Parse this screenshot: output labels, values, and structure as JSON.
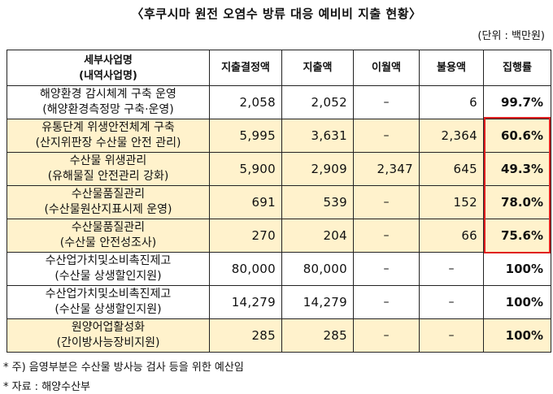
{
  "title": "〈후쿠시마 원전 오염수 방류 대응 예비비 지출 현황〉",
  "unit": "(단위 : 백만원)",
  "table": {
    "headers": {
      "name_line1": "세부사업명",
      "name_line2": "(내역사업명)",
      "decided": "지출결정액",
      "spent": "지출액",
      "carryover": "이월액",
      "unused": "불용액",
      "rate": "집행률"
    },
    "rows": [
      {
        "name": "해양환경 감시체계 구축 운영",
        "sub": "(해양환경측정망 구축·운영)",
        "decided": "2,058",
        "spent": "2,052",
        "carryover": "–",
        "unused": "6",
        "rate": "99.7%",
        "shaded": false
      },
      {
        "name": "유통단계 위생안전체계 구축",
        "sub": "(산지위판장 수산물 안전 관리)",
        "decided": "5,995",
        "spent": "3,631",
        "carryover": "–",
        "unused": "2,364",
        "rate": "60.6%",
        "shaded": true
      },
      {
        "name": "수산물 위생관리",
        "sub": "(유해물질 안전관리 강화)",
        "decided": "5,900",
        "spent": "2,909",
        "carryover": "2,347",
        "unused": "645",
        "rate": "49.3%",
        "shaded": true
      },
      {
        "name": "수산물품질관리",
        "sub": "(수산물원산지표시제 운영)",
        "decided": "691",
        "spent": "539",
        "carryover": "–",
        "unused": "152",
        "rate": "78.0%",
        "shaded": true
      },
      {
        "name": "수산물품질관리",
        "sub": "(수산물 안전성조사)",
        "decided": "270",
        "spent": "204",
        "carryover": "–",
        "unused": "66",
        "rate": "75.6%",
        "shaded": true
      },
      {
        "name": "수산업가치및소비촉진제고",
        "sub": "(수산물 상생할인지원)",
        "decided": "80,000",
        "spent": "80,000",
        "carryover": "–",
        "unused": "–",
        "rate": "100%",
        "shaded": false
      },
      {
        "name": "수산업가치및소비촉진제고",
        "sub": "(수산물 상생할인지원)",
        "decided": "14,279",
        "spent": "14,279",
        "carryover": "–",
        "unused": "–",
        "rate": "100%",
        "shaded": false
      },
      {
        "name": "원양어업활성화",
        "sub": "(간이방사능장비지원)",
        "decided": "285",
        "spent": "285",
        "carryover": "–",
        "unused": "–",
        "rate": "100%",
        "shaded": true
      }
    ]
  },
  "colors": {
    "shade": "#fff2cc",
    "highlight_border": "#e02020"
  },
  "notes": {
    "note1": "* 주) 음영부분은 수산물 방사능 검사 등을 위한 예산임",
    "note2": "* 자료 : 해양수산부"
  }
}
